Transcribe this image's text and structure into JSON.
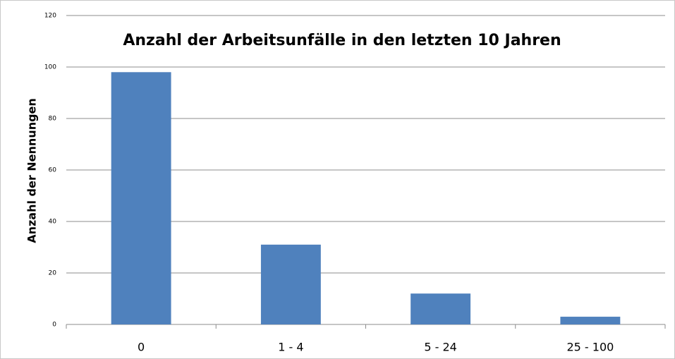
{
  "chart_data": {
    "type": "bar",
    "title": "Anzahl der Arbeitsunfälle in den letzten 10 Jahren",
    "y_label": "Anzahl der Nennungen",
    "categories": [
      "0",
      "1 - 4",
      "5 - 24",
      "25 - 100"
    ],
    "values": [
      98,
      31,
      12,
      3
    ],
    "color": "#4f81bd",
    "ylim": [
      0,
      120
    ],
    "yticks": [
      0,
      20,
      40,
      60,
      80,
      100,
      120
    ],
    "grid": true
  }
}
